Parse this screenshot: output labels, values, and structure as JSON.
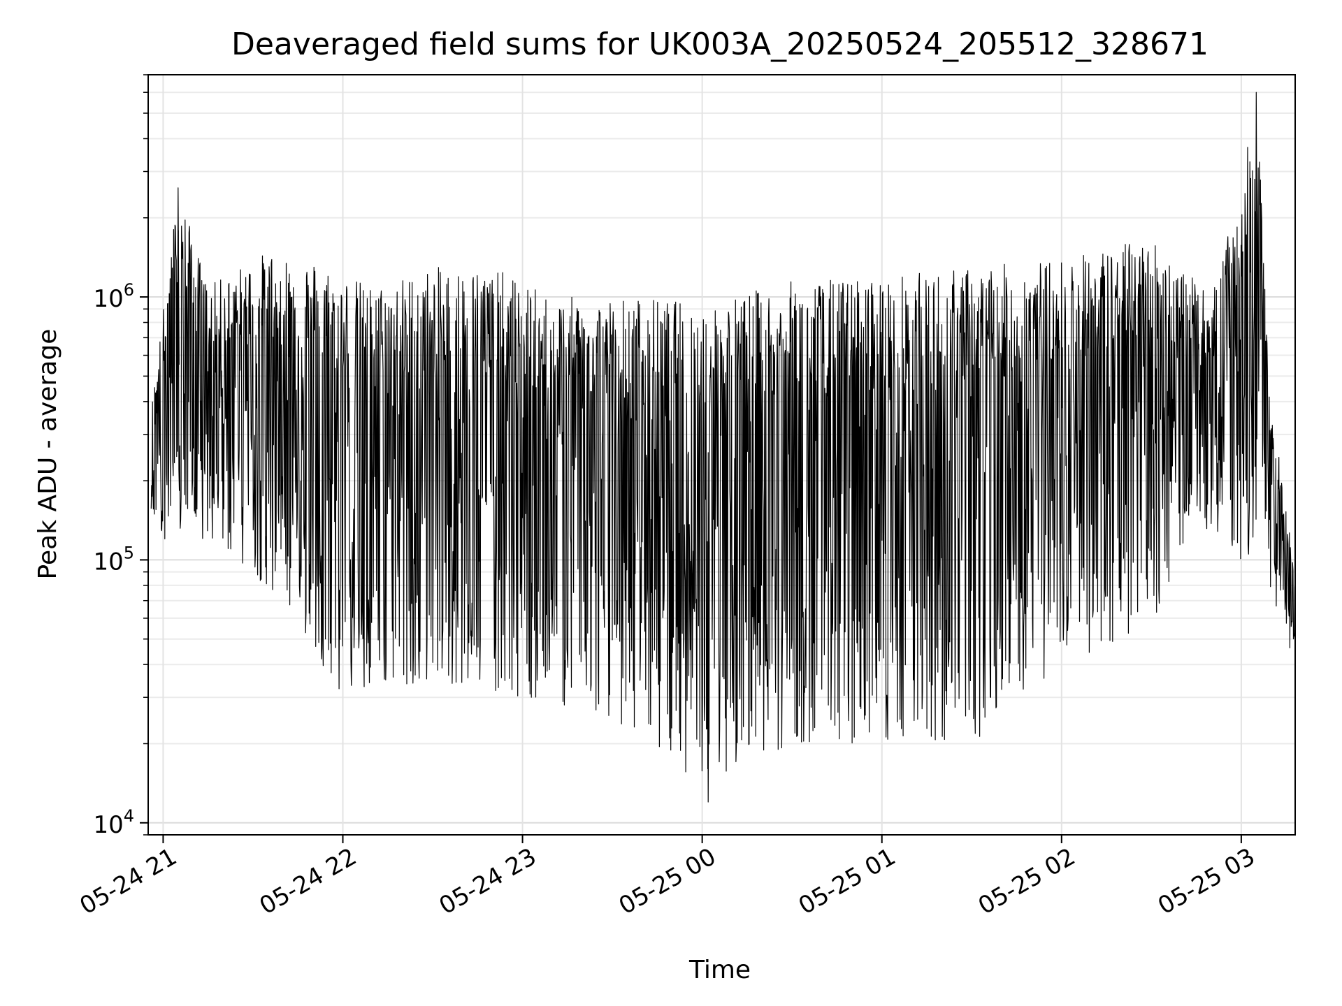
{
  "chart_data": {
    "type": "line",
    "title": "Deaveraged field sums for UK003A_20250524_205512_328671",
    "xlabel": "Time",
    "ylabel": "Peak ADU - average",
    "yscale": "log",
    "ylim": [
      9000,
      7000000
    ],
    "xlim": [
      "2025-05-24 20:55",
      "2025-05-25 03:18"
    ],
    "grid": true,
    "line_color": "#000000",
    "x_ticks": [
      {
        "value": "2025-05-24 21:00",
        "label": "05-24 21"
      },
      {
        "value": "2025-05-24 22:00",
        "label": "05-24 22"
      },
      {
        "value": "2025-05-24 23:00",
        "label": "05-24 23"
      },
      {
        "value": "2025-05-25 00:00",
        "label": "05-25 00"
      },
      {
        "value": "2025-05-25 01:00",
        "label": "05-25 01"
      },
      {
        "value": "2025-05-25 02:00",
        "label": "05-25 02"
      },
      {
        "value": "2025-05-25 03:00",
        "label": "05-25 03"
      }
    ],
    "y_ticks": [
      {
        "value": 10000,
        "base": "10",
        "exp": "4"
      },
      {
        "value": 100000,
        "base": "10",
        "exp": "5"
      },
      {
        "value": 1000000,
        "base": "10",
        "exp": "6"
      }
    ],
    "envelope": {
      "note_units": "x in time, y in Peak ADU - average",
      "upper": [
        {
          "x": "2025-05-24 20:55",
          "y": 300000
        },
        {
          "x": "2025-05-24 21:00",
          "y": 900000
        },
        {
          "x": "2025-05-24 21:05",
          "y": 2600000
        },
        {
          "x": "2025-05-24 21:15",
          "y": 1100000
        },
        {
          "x": "2025-05-24 21:35",
          "y": 1500000
        },
        {
          "x": "2025-05-24 21:50",
          "y": 1400000
        },
        {
          "x": "2025-05-24 22:10",
          "y": 1100000
        },
        {
          "x": "2025-05-24 22:30",
          "y": 1300000
        },
        {
          "x": "2025-05-24 22:50",
          "y": 1300000
        },
        {
          "x": "2025-05-24 23:10",
          "y": 1000000
        },
        {
          "x": "2025-05-24 23:40",
          "y": 1000000
        },
        {
          "x": "2025-05-25 00:00",
          "y": 950000
        },
        {
          "x": "2025-05-25 00:30",
          "y": 1150000
        },
        {
          "x": "2025-05-25 01:00",
          "y": 1200000
        },
        {
          "x": "2025-05-25 01:30",
          "y": 1300000
        },
        {
          "x": "2025-05-25 02:00",
          "y": 1400000
        },
        {
          "x": "2025-05-25 02:30",
          "y": 1700000
        },
        {
          "x": "2025-05-25 02:50",
          "y": 1000000
        },
        {
          "x": "2025-05-25 03:00",
          "y": 2600000
        },
        {
          "x": "2025-05-25 03:05",
          "y": 6000000
        },
        {
          "x": "2025-05-25 03:10",
          "y": 400000
        },
        {
          "x": "2025-05-25 03:18",
          "y": 90000
        }
      ],
      "lower": [
        {
          "x": "2025-05-24 20:55",
          "y": 150000
        },
        {
          "x": "2025-05-24 21:00",
          "y": 120000
        },
        {
          "x": "2025-05-24 21:20",
          "y": 110000
        },
        {
          "x": "2025-05-24 21:40",
          "y": 70000
        },
        {
          "x": "2025-05-24 22:00",
          "y": 30000
        },
        {
          "x": "2025-05-24 22:30",
          "y": 35000
        },
        {
          "x": "2025-05-24 23:00",
          "y": 30000
        },
        {
          "x": "2025-05-24 23:30",
          "y": 25000
        },
        {
          "x": "2025-05-25 00:00",
          "y": 14000
        },
        {
          "x": "2025-05-25 00:30",
          "y": 20000
        },
        {
          "x": "2025-05-25 01:00",
          "y": 20000
        },
        {
          "x": "2025-05-25 01:30",
          "y": 20000
        },
        {
          "x": "2025-05-25 02:00",
          "y": 40000
        },
        {
          "x": "2025-05-25 02:30",
          "y": 55000
        },
        {
          "x": "2025-05-25 02:50",
          "y": 130000
        },
        {
          "x": "2025-05-25 03:00",
          "y": 100000
        },
        {
          "x": "2025-05-25 03:10",
          "y": 70000
        },
        {
          "x": "2025-05-25 03:18",
          "y": 40000
        }
      ]
    },
    "notable_points": [
      {
        "x": "2025-05-24 21:05",
        "y": 2600000
      },
      {
        "x": "2025-05-25 00:02",
        "y": 12000
      },
      {
        "x": "2025-05-25 03:05",
        "y": 6000000
      }
    ]
  }
}
